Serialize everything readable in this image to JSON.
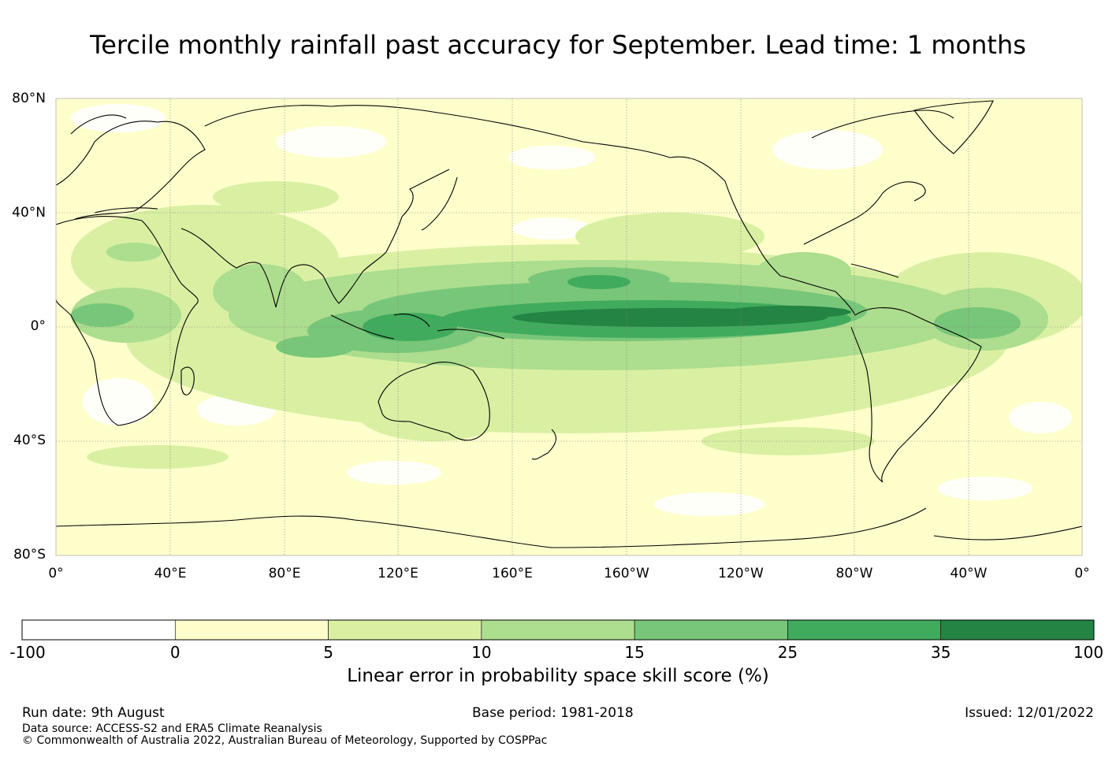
{
  "title": "Tercile monthly rainfall past accuracy for September. Lead time: 1 months",
  "map": {
    "lat_labels": [
      "80°N",
      "40°N",
      "0°",
      "40°S",
      "80°S"
    ],
    "lon_labels": [
      "0°",
      "40°E",
      "80°E",
      "120°E",
      "160°E",
      "160°W",
      "120°W",
      "80°W",
      "40°W",
      "0°"
    ]
  },
  "colorbar": {
    "title": "Linear error in probability space skill score (%)",
    "ticks": [
      "-100",
      "0",
      "5",
      "10",
      "15",
      "25",
      "35",
      "100"
    ],
    "colors": [
      "#ffffff",
      "#ffffcc",
      "#d9f0a3",
      "#addd8e",
      "#78c679",
      "#41ab5d",
      "#238443"
    ]
  },
  "footer": {
    "run_date": "Run date: 9th August",
    "base_period": "Base period: 1981-2018",
    "issued": "Issued: 12/01/2022",
    "data_source": "Data source: ACCESS-S2 and ERA5 Climate Reanalysis",
    "copyright": "© Commonwealth of Australia 2022, Australian Bureau of Meteorology, Supported by COSPPac"
  }
}
